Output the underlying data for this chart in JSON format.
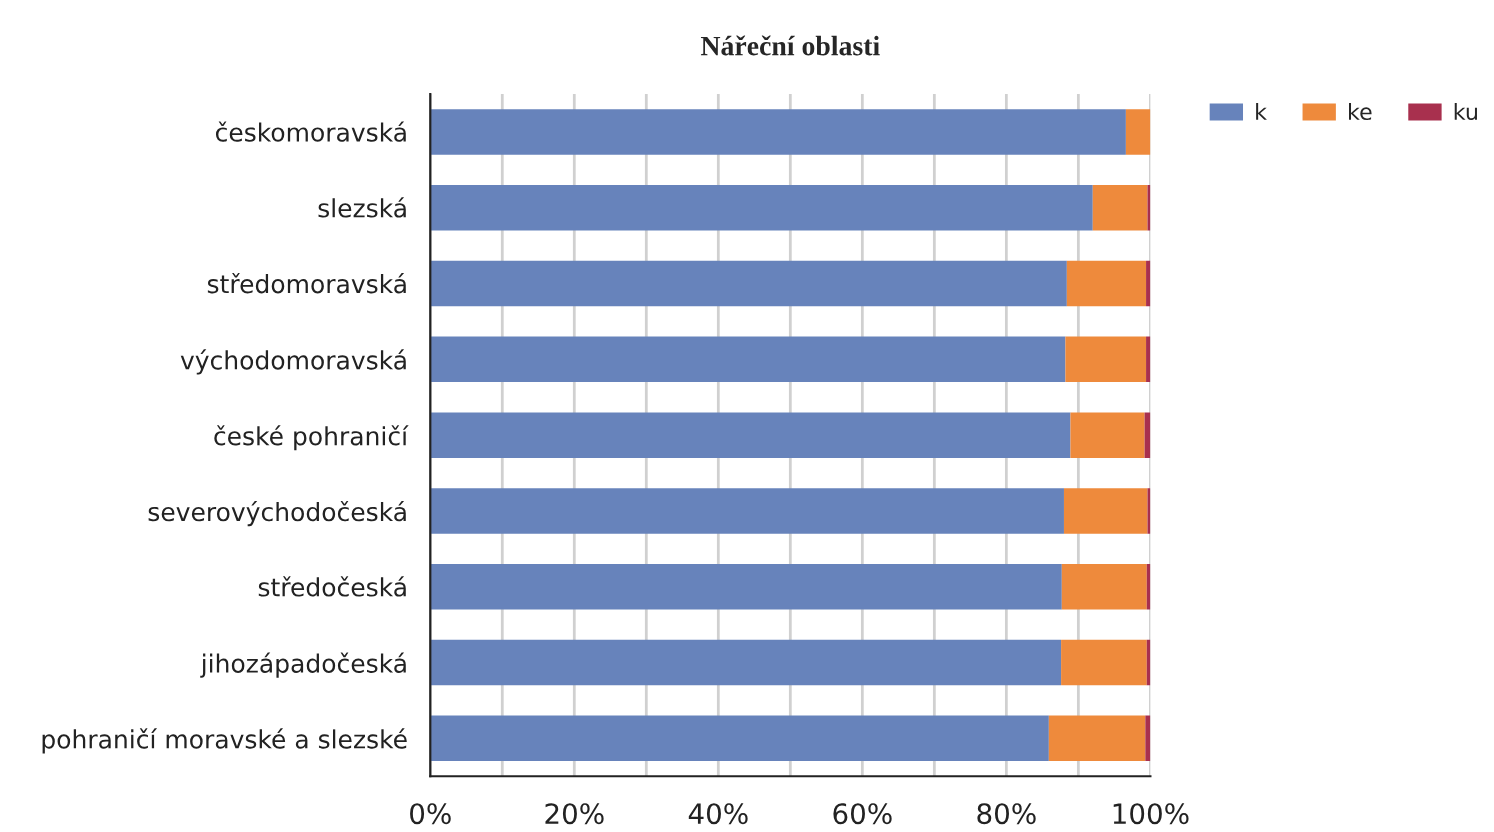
{
  "chart_data": {
    "type": "bar",
    "orientation": "horizontal",
    "stacked": true,
    "title": "Nářeční oblasti",
    "categories": [
      "českomoravská",
      "slezská",
      "středomoravská",
      "východomoravská",
      "české pohraničí",
      "severovýchodočeská",
      "středočeská",
      "jihozápadočeská",
      "pohraničí moravské a slezské"
    ],
    "series": [
      {
        "name": "k",
        "color": "#6783bb",
        "values": [
          96.6,
          92.0,
          88.4,
          88.2,
          88.9,
          88.0,
          87.7,
          87.6,
          85.9
        ]
      },
      {
        "name": "ke",
        "color": "#ee8a3c",
        "values": [
          3.4,
          7.6,
          11.0,
          11.2,
          10.3,
          11.6,
          11.8,
          11.9,
          13.4
        ]
      },
      {
        "name": "ku",
        "color": "#a8304e",
        "values": [
          null,
          0.4,
          0.6,
          0.6,
          0.8,
          0.4,
          0.5,
          0.5,
          0.7
        ]
      }
    ],
    "xlim": [
      0,
      100
    ],
    "xticks": [
      {
        "value": 0,
        "label": "0%"
      },
      {
        "value": 10,
        "label": null
      },
      {
        "value": 20,
        "label": "20%"
      },
      {
        "value": 30,
        "label": null
      },
      {
        "value": 40,
        "label": "40%"
      },
      {
        "value": 50,
        "label": null
      },
      {
        "value": 60,
        "label": "60%"
      },
      {
        "value": 70,
        "label": null
      },
      {
        "value": 80,
        "label": "80%"
      },
      {
        "value": 90,
        "label": null
      },
      {
        "value": 100,
        "label": "100%"
      }
    ],
    "grid": "x",
    "legend": "top right"
  }
}
